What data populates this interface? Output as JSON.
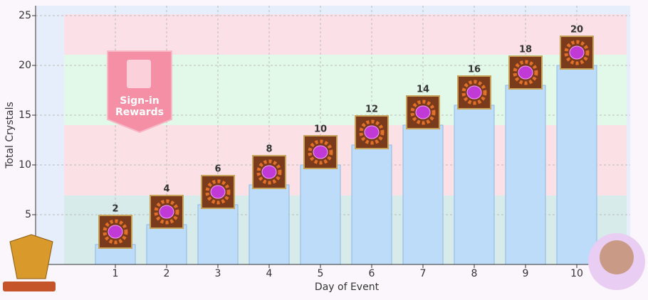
{
  "chart_data": {
    "type": "bar",
    "categories": [
      "1",
      "2",
      "3",
      "4",
      "5",
      "6",
      "7",
      "8",
      "9",
      "10"
    ],
    "values": [
      2,
      4,
      6,
      8,
      10,
      12,
      14,
      16,
      18,
      20
    ],
    "color": "#bcdcfa",
    "xlabel": "Day of Event",
    "ylabel": "Total Crystals",
    "ylim": [
      0,
      26
    ],
    "yticks": [
      5,
      10,
      15,
      20,
      25
    ],
    "grid": true,
    "annotations": [
      "Sign-in",
      "Rewards"
    ]
  }
}
